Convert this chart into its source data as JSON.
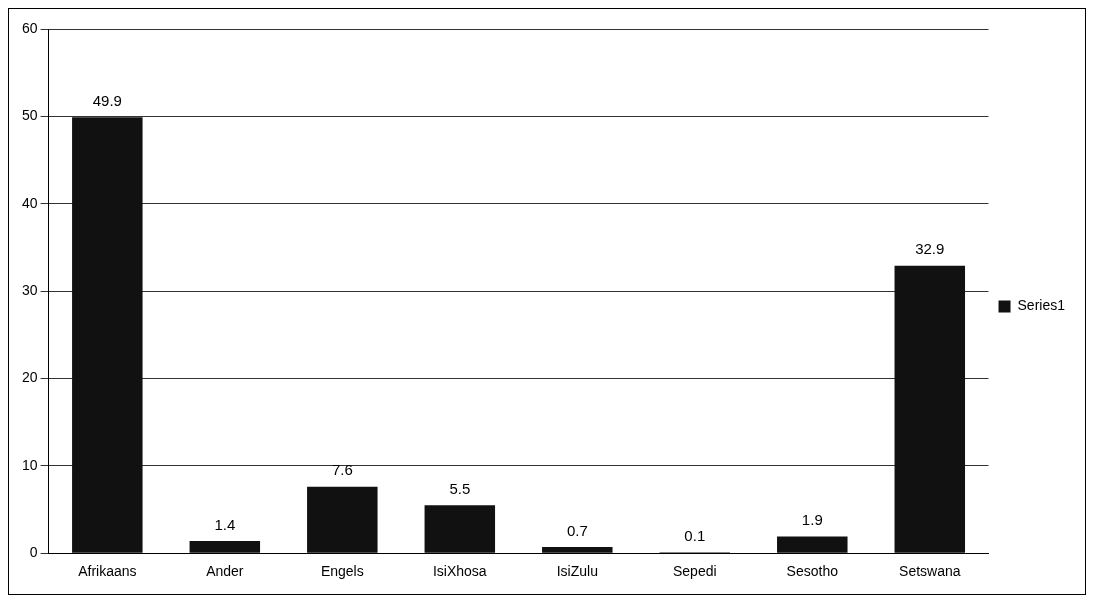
{
  "chart_data": {
    "type": "bar",
    "categories": [
      "Afrikaans",
      "Ander",
      "Engels",
      "IsiXhosa",
      "IsiZulu",
      "Sepedi",
      "Sesotho",
      "Setswana"
    ],
    "series": [
      {
        "name": "Series1",
        "color": "#111111",
        "values": [
          49.9,
          1.4,
          7.6,
          5.5,
          0.7,
          0.1,
          1.9,
          32.9
        ]
      }
    ],
    "ylim": [
      0,
      60
    ],
    "yticks": [
      0,
      10,
      20,
      30,
      40,
      50,
      60
    ],
    "grid": "y",
    "legend": "right",
    "data_labels": true
  }
}
